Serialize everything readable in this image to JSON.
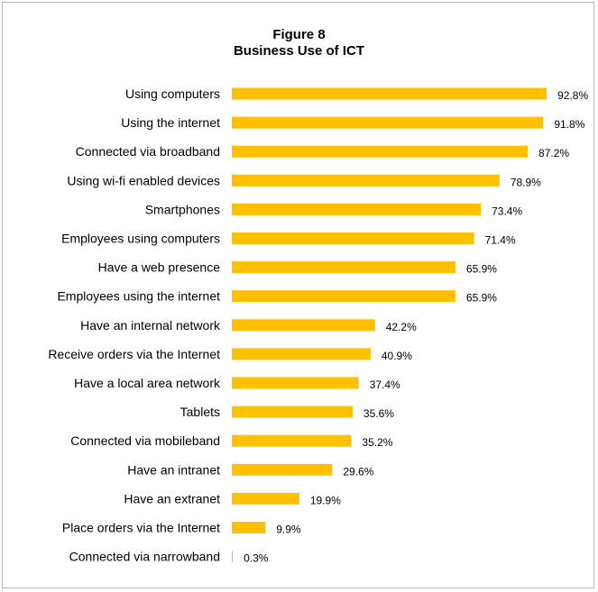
{
  "chart_data": {
    "type": "bar",
    "orientation": "horizontal",
    "title": "Figure 8",
    "subtitle": "Business Use of ICT",
    "value_suffix": "%",
    "bar_color": "#FFC000",
    "xlim": [
      0,
      100
    ],
    "grid": false,
    "categories": [
      "Using computers",
      "Using the internet",
      "Connected via broadband",
      "Using wi-fi enabled devices",
      "Smartphones",
      "Employees using computers",
      "Have a web presence",
      "Employees using the internet",
      "Have an internal network",
      "Receive orders via  the Internet",
      "Have a local area network",
      "Tablets",
      "Connected via mobileband",
      "Have an intranet",
      "Have an extranet",
      "Place orders via the Internet",
      "Connected via narrowband"
    ],
    "values": [
      92.8,
      91.8,
      87.2,
      78.9,
      73.4,
      71.4,
      65.9,
      65.9,
      42.2,
      40.9,
      37.4,
      35.6,
      35.2,
      29.6,
      19.9,
      9.9,
      0.3
    ],
    "labels": [
      "92.8%",
      "91.8%",
      "87.2%",
      "78.9%",
      "73.4%",
      "71.4%",
      "65.9%",
      "65.9%",
      "42.2%",
      "40.9%",
      "37.4%",
      "35.6%",
      "35.2%",
      "29.6%",
      "19.9%",
      "9.9%",
      "0.3%"
    ]
  }
}
